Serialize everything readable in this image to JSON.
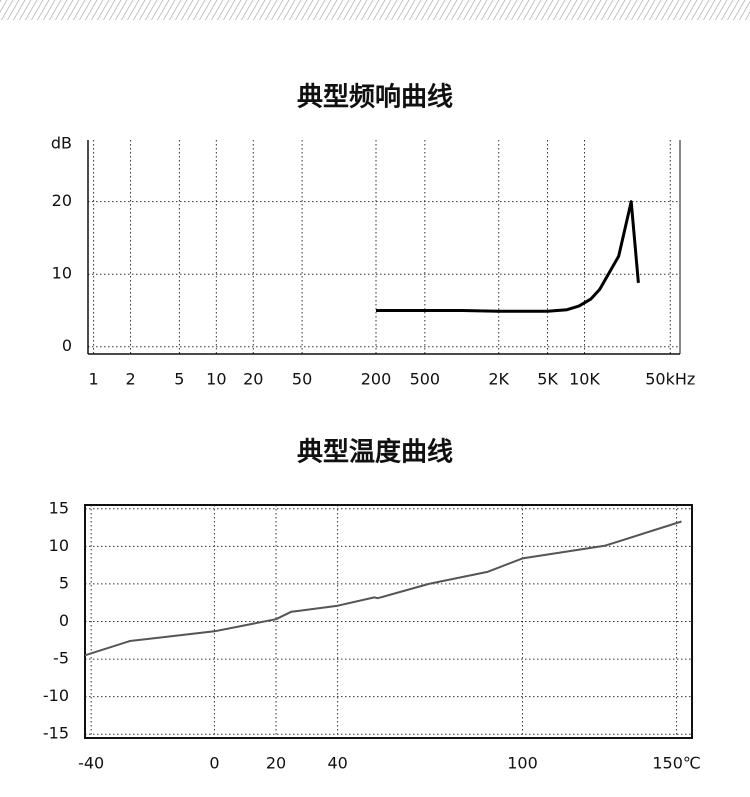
{
  "chart_data": [
    {
      "type": "line",
      "title": "典型频响曲线",
      "y_label": "dB",
      "x": [
        200,
        500,
        1000,
        2000,
        5000,
        7200,
        9000,
        11300,
        13300,
        19000,
        24000,
        27500
      ],
      "series": [
        {
          "color": "#000000",
          "values": [
            5.0,
            5.0,
            5.0,
            4.9,
            4.9,
            5.1,
            5.6,
            6.6,
            7.9,
            12.5,
            20,
            8.8
          ]
        }
      ],
      "xscale": "log",
      "xlim": [
        0.9,
        60000
      ],
      "xticks": [
        1,
        2,
        5,
        10,
        20,
        50,
        200,
        500,
        {
          "value": 2000,
          "label": "2K"
        },
        {
          "value": 5000,
          "label": "5K"
        },
        {
          "value": 10000,
          "label": "10K"
        },
        {
          "value": 50000,
          "label": "50kHz"
        }
      ],
      "ylim": [
        -1,
        28.5
      ],
      "yticks": [
        0,
        10,
        20
      ],
      "grid": true
    },
    {
      "type": "line",
      "title": "典型温度曲线",
      "x": [
        -42,
        -27.4,
        0,
        20,
        25,
        27,
        40,
        51.9,
        53,
        69.6,
        88.6,
        100,
        126.9,
        151.6
      ],
      "series": [
        {
          "color": "#555555",
          "values": [
            -4.5,
            -2.6,
            -1.3,
            0.3,
            1.3,
            1.4,
            2.1,
            3.2,
            3.1,
            5.0,
            6.6,
            8.4,
            10.1,
            13.3
          ]
        }
      ],
      "xscale": "linear",
      "xlim": [
        -42,
        155
      ],
      "xticks": [
        -40,
        0,
        20,
        40,
        100,
        {
          "value": 150,
          "label": "150℃"
        }
      ],
      "ylim": [
        -15.5,
        15.5
      ],
      "yticks": [
        -15,
        -10,
        -5,
        0,
        5,
        10,
        15
      ],
      "grid": true
    }
  ]
}
